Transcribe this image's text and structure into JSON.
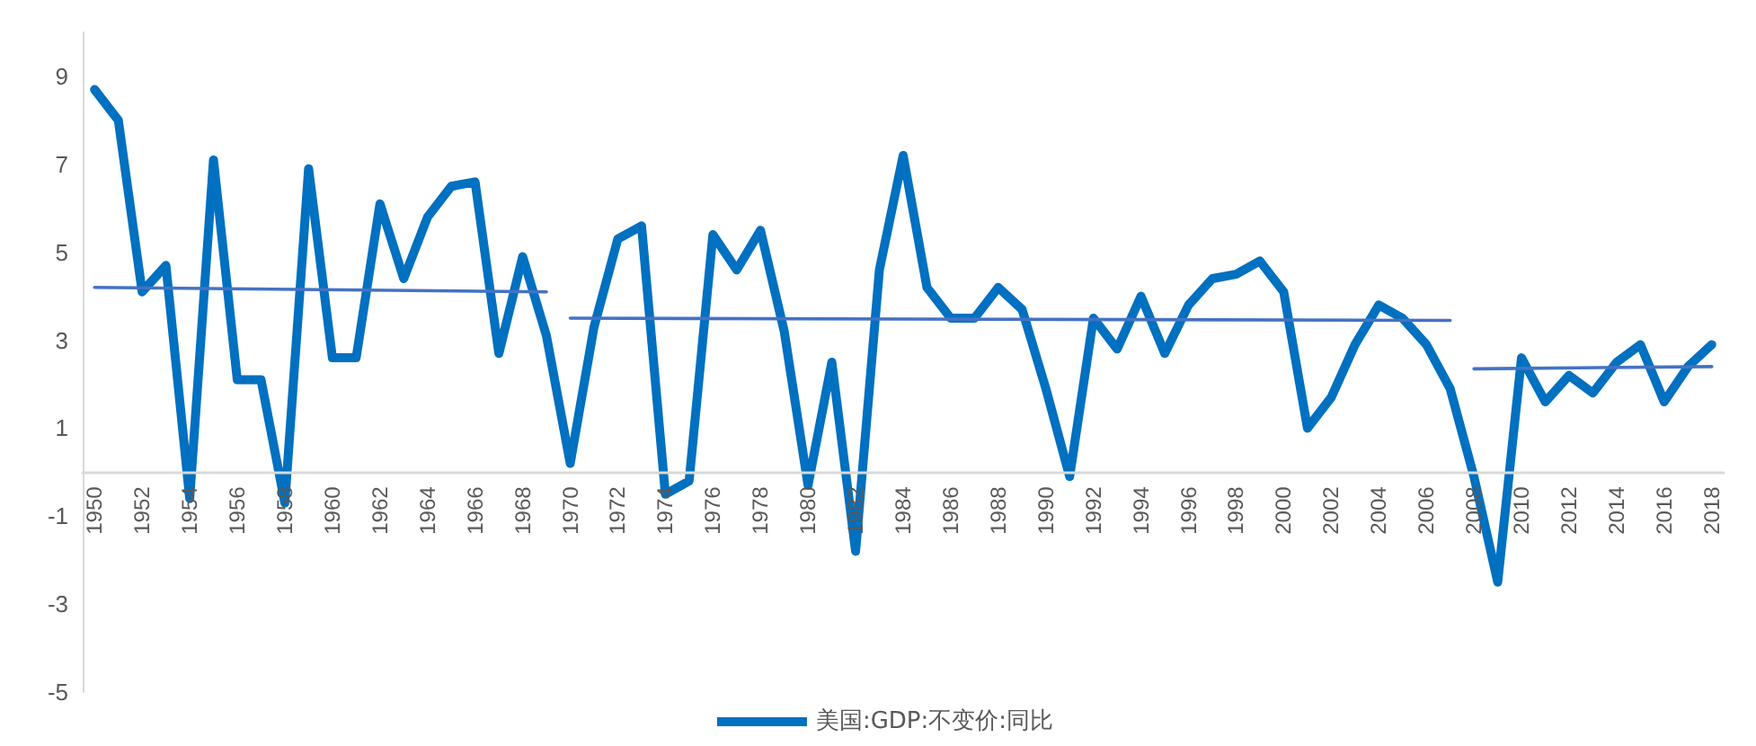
{
  "chart_data": {
    "type": "line",
    "categories": [
      "1950",
      null,
      "1952",
      null,
      "1954",
      null,
      "1956",
      null,
      "1958",
      null,
      "1960",
      null,
      "1962",
      null,
      "1964",
      null,
      "1966",
      null,
      "1968",
      null,
      "1970",
      null,
      "1972",
      null,
      "1974",
      null,
      "1976",
      null,
      "1978",
      null,
      "1980",
      null,
      "1982",
      null,
      "1984",
      null,
      "1986",
      null,
      "1988",
      null,
      "1990",
      null,
      "1992",
      null,
      "1994",
      null,
      "1996",
      null,
      "1998",
      null,
      "2000",
      null,
      "2002",
      null,
      "2004",
      null,
      "2006",
      null,
      "2008",
      null,
      "2010",
      null,
      "2012",
      null,
      "2014",
      null,
      "2016",
      null,
      "2018"
    ],
    "series": [
      {
        "name": "美国:GDP:不变价:同比",
        "color": "#0070c0",
        "values": [
          8.7,
          8.0,
          4.1,
          4.7,
          -0.6,
          7.1,
          2.1,
          2.1,
          -0.7,
          6.9,
          2.6,
          2.6,
          6.1,
          4.4,
          5.8,
          6.5,
          6.6,
          2.7,
          4.9,
          3.1,
          0.2,
          3.3,
          5.3,
          5.6,
          -0.5,
          -0.2,
          5.4,
          4.6,
          5.5,
          3.2,
          -0.3,
          2.5,
          -1.8,
          4.6,
          7.2,
          4.2,
          3.5,
          3.5,
          4.2,
          3.7,
          1.9,
          -0.1,
          3.5,
          2.8,
          4.0,
          2.7,
          3.8,
          4.4,
          4.5,
          4.8,
          4.1,
          1.0,
          1.7,
          2.9,
          3.8,
          3.5,
          2.9,
          1.9,
          -0.1,
          -2.5,
          2.6,
          1.6,
          2.2,
          1.8,
          2.5,
          2.9,
          1.6,
          2.4,
          2.9
        ]
      },
      {
        "type": "line",
        "color": "#4472c4",
        "values": [
          4.2,
          null,
          null,
          null,
          null,
          null,
          null,
          null,
          null,
          null,
          null,
          null,
          null,
          null,
          null,
          null,
          null,
          null,
          null,
          4.1,
          null,
          null,
          null,
          null,
          null,
          null,
          null,
          null,
          null,
          null,
          null,
          null,
          null,
          null,
          null,
          null,
          null,
          null,
          null,
          null,
          null,
          null,
          null,
          null,
          null,
          null,
          null,
          null,
          null,
          null,
          null,
          null,
          null,
          null,
          null,
          null,
          null,
          null,
          null,
          null,
          null,
          null,
          null,
          null,
          null,
          null,
          null,
          null,
          null
        ]
      },
      {
        "type": "line",
        "color": "#4472c4",
        "values": [
          null,
          null,
          null,
          null,
          null,
          null,
          null,
          null,
          null,
          null,
          null,
          null,
          null,
          null,
          null,
          null,
          null,
          null,
          null,
          null,
          3.5,
          null,
          null,
          null,
          null,
          null,
          null,
          null,
          null,
          null,
          null,
          null,
          null,
          null,
          null,
          null,
          null,
          null,
          null,
          null,
          null,
          null,
          null,
          null,
          null,
          null,
          null,
          null,
          null,
          null,
          null,
          null,
          null,
          null,
          null,
          null,
          null,
          3.45,
          null,
          null,
          null,
          null,
          null,
          null,
          null,
          null,
          null,
          null,
          null
        ]
      },
      {
        "type": "line",
        "color": "#4472c4",
        "values": [
          null,
          null,
          null,
          null,
          null,
          null,
          null,
          null,
          null,
          null,
          null,
          null,
          null,
          null,
          null,
          null,
          null,
          null,
          null,
          null,
          null,
          null,
          null,
          null,
          null,
          null,
          null,
          null,
          null,
          null,
          null,
          null,
          null,
          null,
          null,
          null,
          null,
          null,
          null,
          null,
          null,
          null,
          null,
          null,
          null,
          null,
          null,
          null,
          null,
          null,
          null,
          null,
          null,
          null,
          null,
          null,
          null,
          null,
          2.35,
          null,
          null,
          null,
          null,
          null,
          null,
          null,
          null,
          null,
          2.4
        ]
      }
    ],
    "ylim": [
      -5,
      10
    ],
    "yticks": [
      -5,
      -3,
      -1,
      1,
      3,
      5,
      7,
      9
    ],
    "grid": false,
    "legend": "bottom",
    "marker": "none",
    "line_style": "solid"
  }
}
